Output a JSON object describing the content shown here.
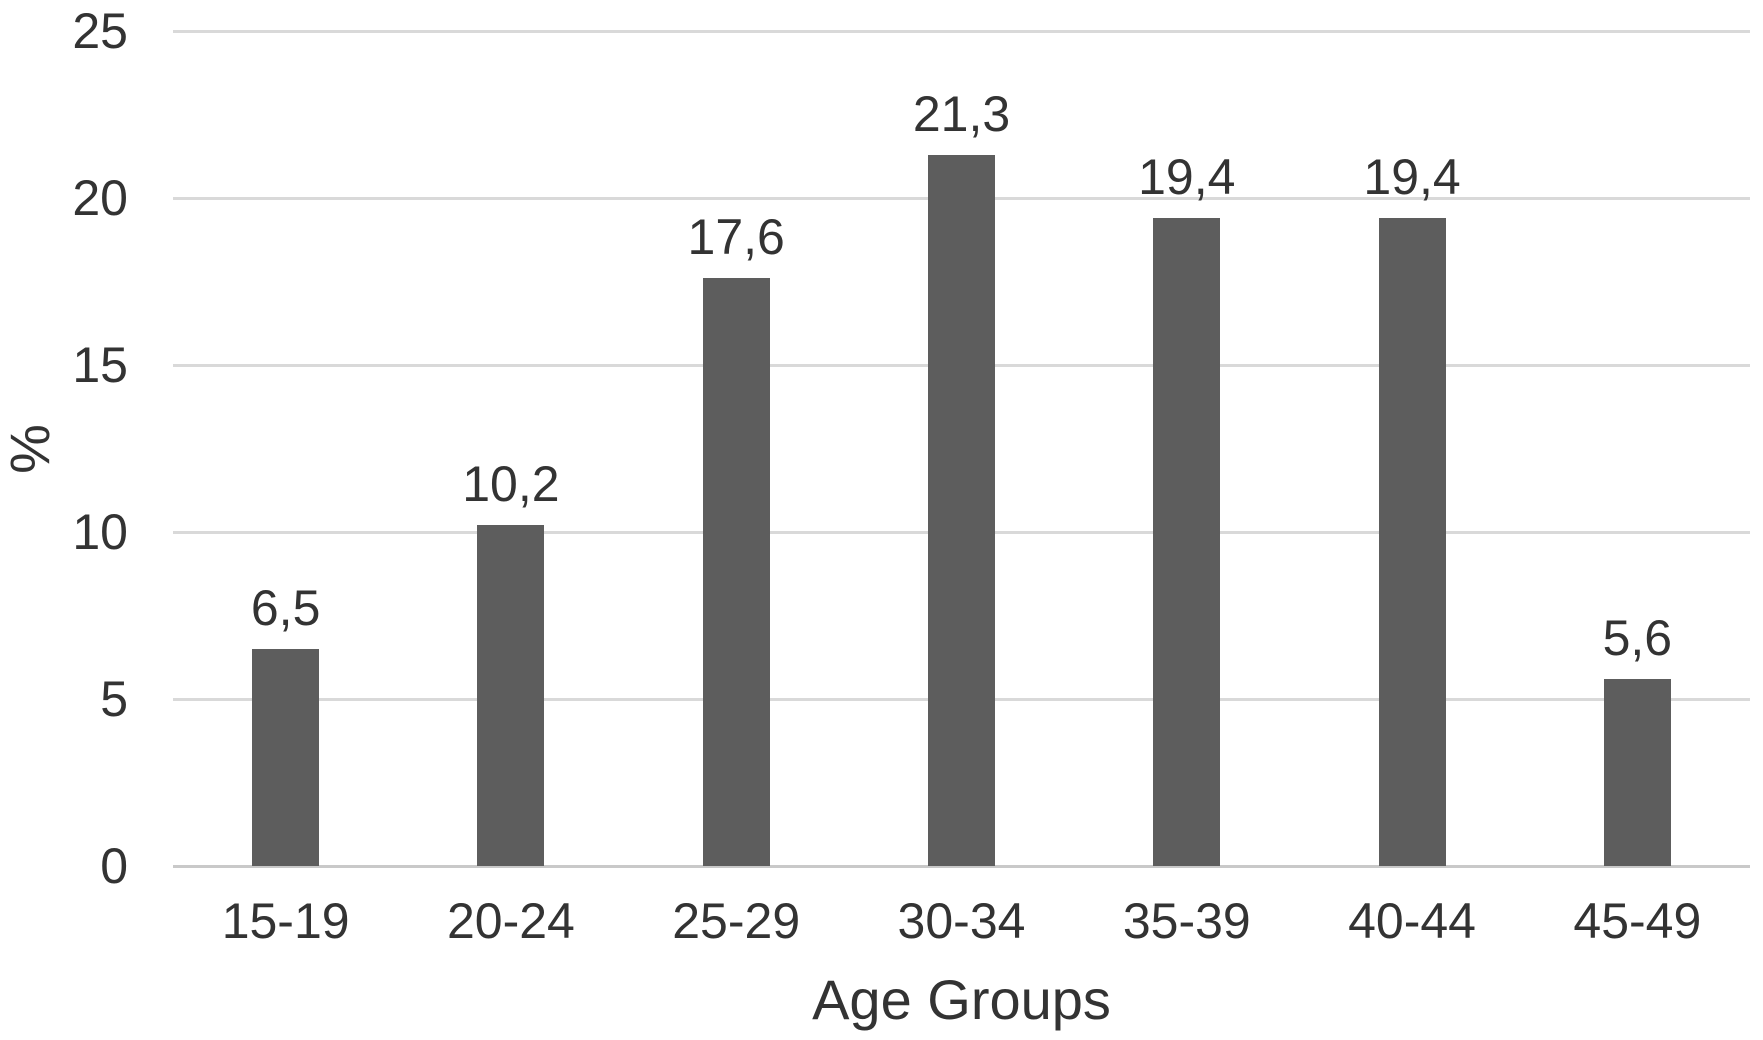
{
  "chart_data": {
    "type": "bar",
    "title": "",
    "categories": [
      "15-19",
      "20-24",
      "25-29",
      "30-34",
      "35-39",
      "40-44",
      "45-49"
    ],
    "values": [
      6.5,
      10.2,
      17.6,
      21.3,
      19.4,
      19.4,
      5.6
    ],
    "value_labels": [
      "6,5",
      "10,2",
      "17,6",
      "21,3",
      "19,4",
      "19,4",
      "5,6"
    ],
    "xlabel": "Age Groups",
    "ylabel": "%",
    "yticks": [
      0,
      5,
      10,
      15,
      20,
      25
    ],
    "ytick_labels": [
      "0",
      "5",
      "10",
      "15",
      "20",
      "25"
    ],
    "ylim": [
      0,
      25
    ],
    "grid": true,
    "legend_position": "none",
    "colors": {
      "bar": "#5d5d5d",
      "gridline": "#d9d9d9",
      "axis_line": "#c9c9c9",
      "text": "#333333"
    }
  }
}
